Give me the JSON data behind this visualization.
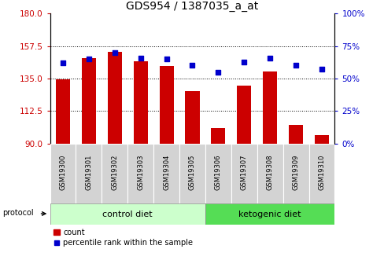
{
  "title": "GDS954 / 1387035_a_at",
  "samples": [
    "GSM19300",
    "GSM19301",
    "GSM19302",
    "GSM19303",
    "GSM19304",
    "GSM19305",
    "GSM19306",
    "GSM19307",
    "GSM19308",
    "GSM19309",
    "GSM19310"
  ],
  "count_values": [
    134.5,
    149.0,
    153.5,
    147.0,
    143.5,
    126.5,
    101.0,
    130.0,
    140.0,
    103.0,
    96.0
  ],
  "percentile_values": [
    62,
    65,
    70,
    66,
    65,
    60,
    55,
    63,
    66,
    60,
    57
  ],
  "left_ylim": [
    90,
    180
  ],
  "left_yticks": [
    90,
    112.5,
    135,
    157.5,
    180
  ],
  "right_ylim": [
    0,
    100
  ],
  "right_yticks": [
    0,
    25,
    50,
    75,
    100
  ],
  "bar_color": "#cc0000",
  "dot_color": "#0000cc",
  "bar_width": 0.55,
  "n_control": 6,
  "n_ketogenic": 5,
  "control_color": "#ccffcc",
  "ketogenic_color": "#55dd55",
  "background_color": "#ffffff",
  "plot_bg_color": "#ffffff",
  "tick_label_color_left": "#cc0000",
  "tick_label_color_right": "#0000cc",
  "title_fontsize": 10,
  "tick_fontsize": 7.5,
  "sample_fontsize": 6,
  "protocol_fontsize": 8,
  "legend_fontsize": 7
}
